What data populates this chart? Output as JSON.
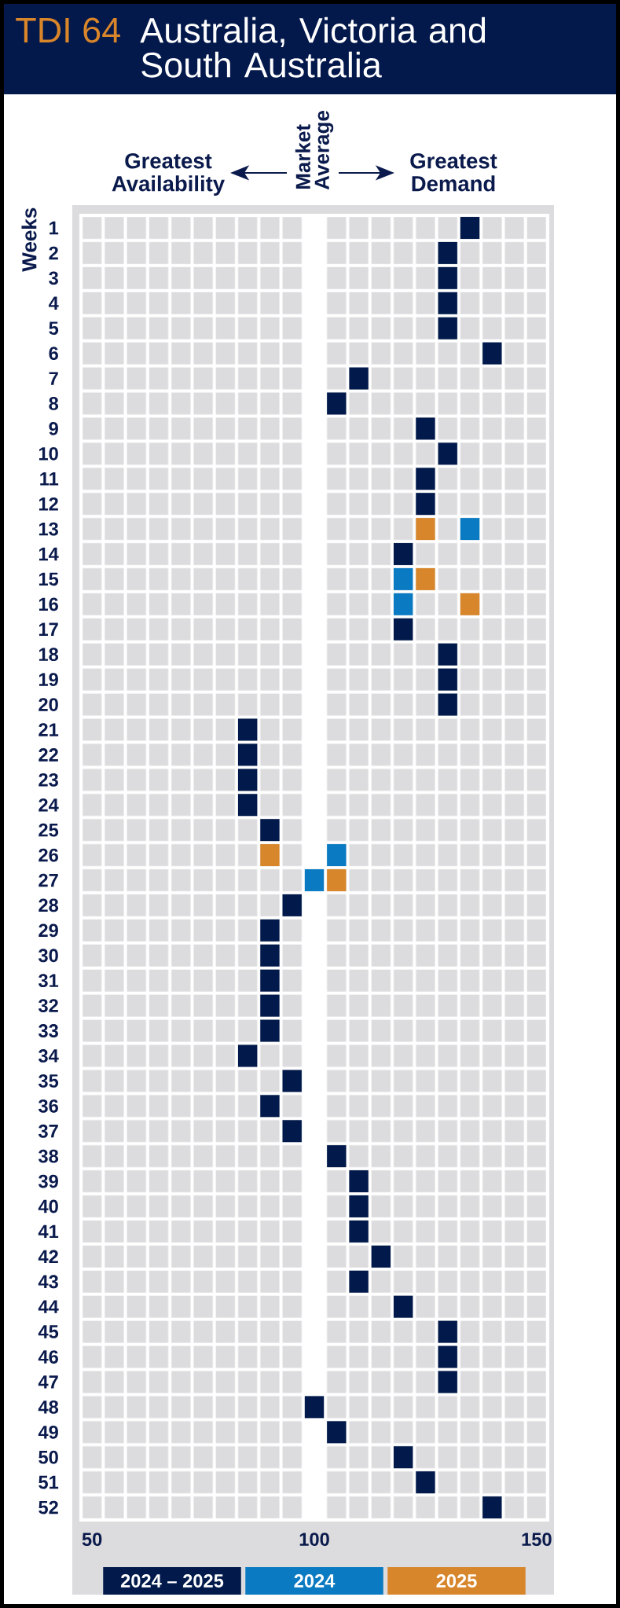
{
  "chart_data": {
    "type": "scatter",
    "title": "TDI 64",
    "subtitle": "Australia, Victoria and South Australia",
    "ylabel": "Weeks",
    "annotations": [
      "Greatest Availability",
      "Market Average",
      "Greatest Demand"
    ],
    "xlim": [
      47.5,
      152.5
    ],
    "xticks": [
      50,
      100,
      150
    ],
    "ylim": [
      52.5,
      0.5
    ],
    "yticks": [
      1,
      2,
      3,
      4,
      5,
      6,
      7,
      8,
      9,
      10,
      11,
      12,
      13,
      14,
      15,
      16,
      17,
      18,
      19,
      20,
      21,
      22,
      23,
      24,
      25,
      26,
      27,
      28,
      29,
      30,
      31,
      32,
      33,
      34,
      35,
      36,
      37,
      38,
      39,
      40,
      41,
      42,
      43,
      44,
      45,
      46,
      47,
      48,
      49,
      50,
      51,
      52
    ],
    "marker": "square",
    "legend": "bottom",
    "bands": [
      {
        "axis": "x",
        "from": 97.5,
        "to": 102.5,
        "color": "#ffffff"
      }
    ],
    "series": [
      {
        "name": "2024 – 2025",
        "color": "#011a4b",
        "x": [
          135,
          130,
          130,
          130,
          130,
          140,
          110,
          105,
          125,
          130,
          125,
          125,
          120,
          120,
          130,
          130,
          130,
          85,
          85,
          85,
          85,
          90,
          95,
          90,
          90,
          90,
          90,
          90,
          85,
          95,
          90,
          95,
          105,
          110,
          110,
          110,
          115,
          110,
          120,
          130,
          130,
          130,
          100,
          105,
          120,
          125,
          140
        ],
        "values": [
          1,
          2,
          3,
          4,
          5,
          6,
          7,
          8,
          9,
          10,
          11,
          12,
          14,
          17,
          18,
          19,
          20,
          21,
          22,
          23,
          24,
          25,
          28,
          29,
          30,
          31,
          32,
          33,
          34,
          35,
          36,
          37,
          38,
          39,
          40,
          41,
          42,
          43,
          44,
          45,
          46,
          47,
          48,
          49,
          50,
          51,
          52
        ]
      },
      {
        "name": "2024",
        "color": "#0a7bc2",
        "x": [
          135,
          120,
          120,
          105,
          100
        ],
        "values": [
          13,
          15,
          16,
          26,
          27
        ]
      },
      {
        "name": "2025",
        "color": "#d8862b",
        "x": [
          125,
          125,
          135,
          90,
          105
        ],
        "values": [
          13,
          15,
          16,
          26,
          27
        ]
      }
    ]
  }
}
